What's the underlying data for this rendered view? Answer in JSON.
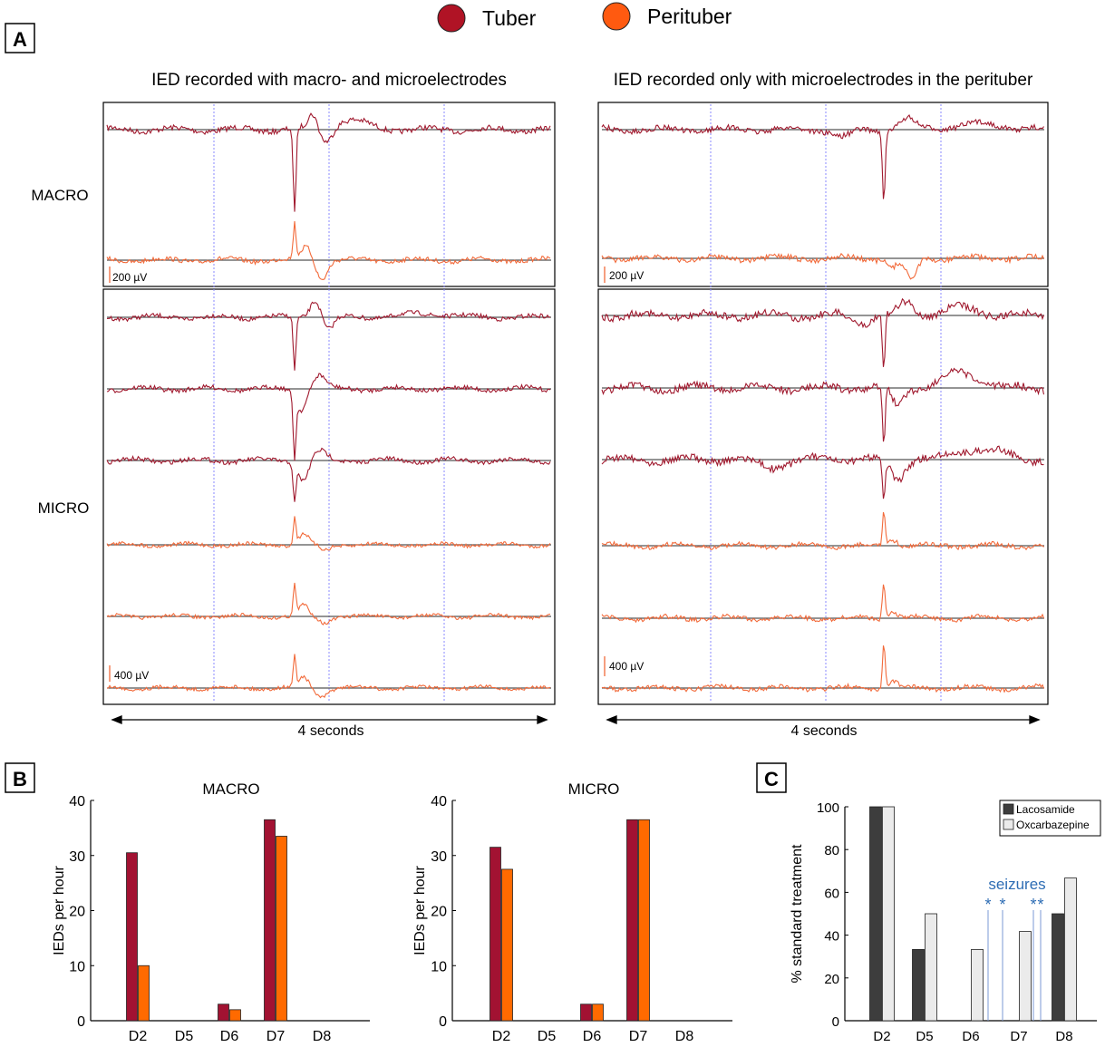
{
  "legend": {
    "items": [
      {
        "label": "Tuber",
        "color": "#b01325"
      },
      {
        "label": "Perituber",
        "color": "#ff5a10"
      }
    ]
  },
  "panel_a": {
    "label": "A",
    "left_title": "IED recorded with macro- and microelectrodes",
    "right_title": "IED recorded only with microelectrodes in the perituber",
    "row_labels": {
      "macro": "MACRO",
      "micro": "MICRO"
    },
    "macro_scale": "200 µV",
    "micro_scale": "400 µV",
    "time_label": "4 seconds",
    "colors": {
      "tuber": "#a0192e",
      "perituber": "#f26a3a",
      "baseline": "#555555",
      "marker": "#8a8aff"
    }
  },
  "chart_data": [
    {
      "type": "bar",
      "panel": "B",
      "title": "MACRO",
      "ylabel": "IEDs per hour",
      "categories": [
        "D2",
        "D5",
        "D6",
        "D7",
        "D8"
      ],
      "ylim": [
        0,
        40
      ],
      "yticks": [
        0,
        10,
        20,
        30,
        40
      ],
      "series": [
        {
          "name": "Tuber",
          "color": "#a21232",
          "values": [
            30.5,
            0,
            3,
            36.5,
            0
          ]
        },
        {
          "name": "Perituber",
          "color": "#ff6a00",
          "values": [
            10,
            0,
            2,
            33.5,
            0
          ]
        }
      ]
    },
    {
      "type": "bar",
      "panel": "B",
      "title": "MICRO",
      "ylabel": "IEDs per hour",
      "categories": [
        "D2",
        "D5",
        "D6",
        "D7",
        "D8"
      ],
      "ylim": [
        0,
        40
      ],
      "yticks": [
        0,
        10,
        20,
        30,
        40
      ],
      "series": [
        {
          "name": "Tuber",
          "color": "#a21232",
          "values": [
            31.5,
            0,
            3,
            36.5,
            0
          ]
        },
        {
          "name": "Perituber",
          "color": "#ff6a00",
          "values": [
            27.5,
            0,
            3,
            36.5,
            0
          ]
        }
      ]
    },
    {
      "type": "bar",
      "panel": "C",
      "ylabel": "% standard treatment",
      "categories": [
        "D2",
        "D5",
        "D6",
        "D7",
        "D8"
      ],
      "ylim": [
        0,
        100
      ],
      "yticks": [
        0,
        20,
        40,
        60,
        80,
        100
      ],
      "series": [
        {
          "name": "Lacosamide",
          "color": "#3d3d3d",
          "values": [
            100,
            33.3,
            0,
            0,
            50
          ]
        },
        {
          "name": "Oxcarbazepine",
          "color": "#ebebeb",
          "values": [
            100,
            50,
            33.3,
            41.7,
            66.7
          ]
        }
      ],
      "annotation": {
        "text": "seizures",
        "marker": "*",
        "color": "#2e6db4"
      },
      "legend_position": "top-right"
    }
  ]
}
